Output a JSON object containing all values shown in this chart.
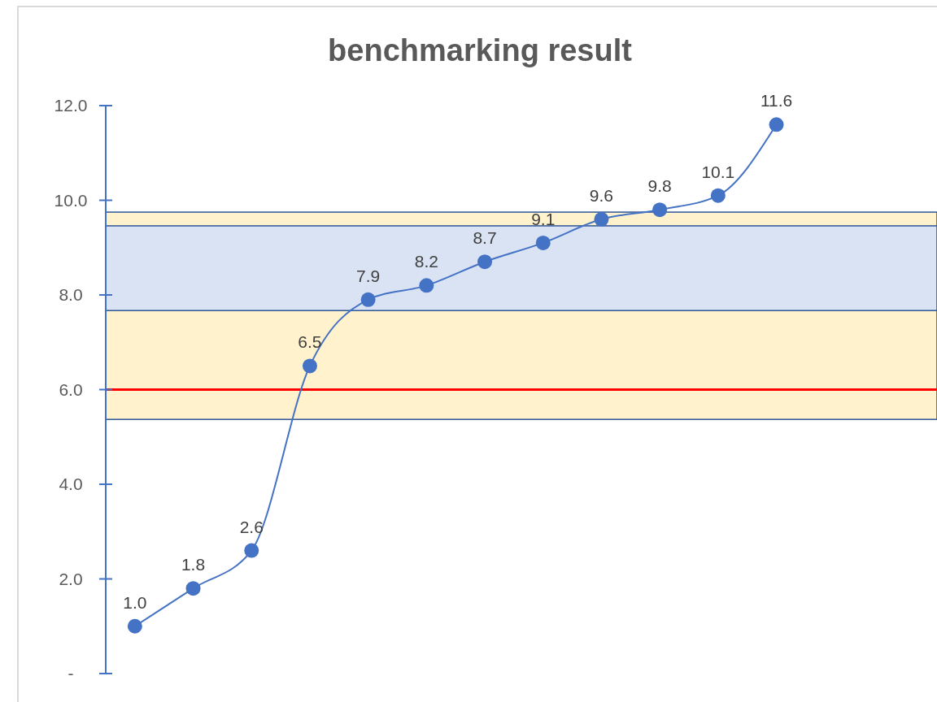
{
  "chart_data": {
    "type": "line",
    "title": "benchmarking result",
    "categories": [
      null,
      null,
      null,
      null,
      null,
      null,
      null,
      null,
      null,
      null,
      null,
      null
    ],
    "series": [
      {
        "color": "#4472c4",
        "values": [
          1.0,
          1.8,
          2.6,
          6.5,
          7.9,
          8.2,
          8.7,
          9.1,
          9.6,
          9.8,
          10.1,
          11.6
        ],
        "value_labels": [
          "1.0",
          "1.8",
          "2.6",
          "6.5",
          "7.9",
          "8.2",
          "8.7",
          "9.1",
          "9.6",
          "9.8",
          "10.1",
          "11.6"
        ]
      }
    ],
    "marker": "circle",
    "line_style": "solid",
    "grid": false,
    "tick_labels": "y",
    "ylim": [
      0,
      12
    ],
    "yticks": [
      {
        "value": 0,
        "label": "-"
      },
      {
        "value": 2,
        "label": "2.0"
      },
      {
        "value": 4,
        "label": "4.0"
      },
      {
        "value": 6,
        "label": "6.0"
      },
      {
        "value": 8,
        "label": "8.0"
      },
      {
        "value": 10,
        "label": "10.0"
      },
      {
        "value": 12,
        "label": "12.0"
      }
    ],
    "bands": [
      {
        "axis": "y",
        "from": 5.37,
        "to": 9.75,
        "color": "#fff2cc"
      },
      {
        "axis": "y",
        "from": 7.67,
        "to": 9.46,
        "color": "#dae3f3"
      }
    ],
    "ref_lines": [
      {
        "axis": "y",
        "value": 6.0,
        "color": "#ff0000",
        "line_style": "solid"
      }
    ]
  }
}
